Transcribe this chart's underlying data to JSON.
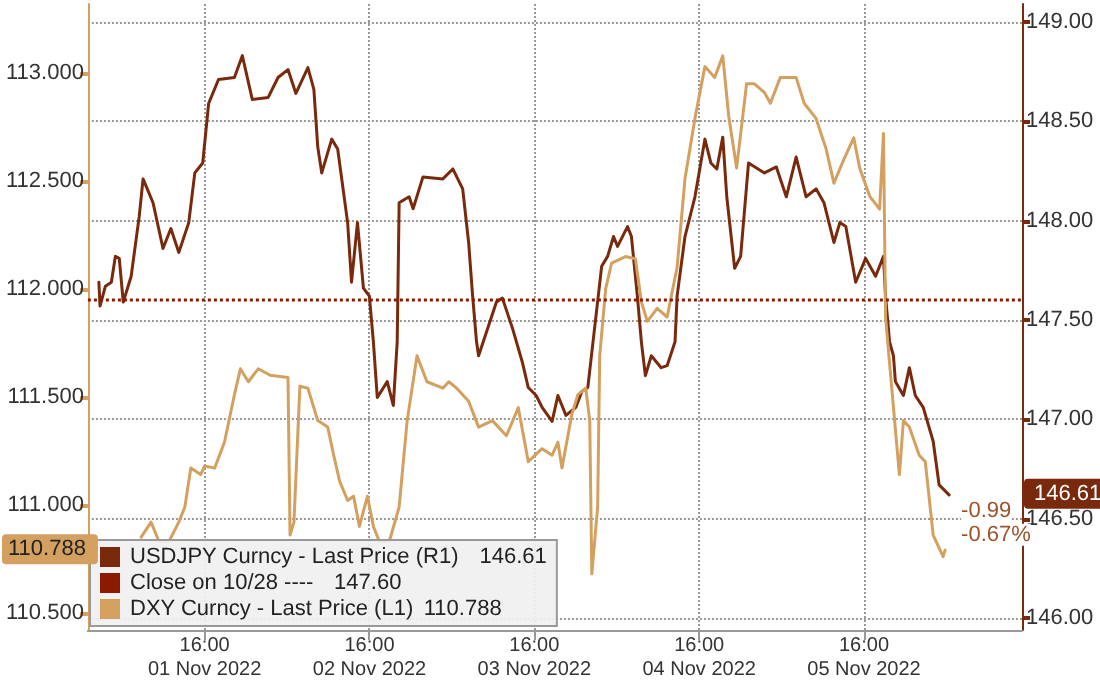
{
  "chart_data": {
    "type": "line",
    "xlim": [
      "2022-10-31T23:00",
      "2022-11-06T15:00"
    ],
    "xticks": [
      {
        "value": "2022-11-01T16:00",
        "label": "16:00\n01 Nov 2022"
      },
      {
        "value": "2022-11-02T16:00",
        "label": "16:00\n02 Nov 2022"
      },
      {
        "value": "2022-11-03T16:00",
        "label": "16:00\n03 Nov 2022"
      },
      {
        "value": "2022-11-04T16:00",
        "label": "16:00\n04 Nov 2022"
      },
      {
        "value": "2022-11-05T16:00",
        "label": "16:00\n05 Nov 2022"
      }
    ],
    "ylim": [
      110.42,
      113.32
    ],
    "yticks": [
      {
        "value": 110.5,
        "label": "110.500"
      },
      {
        "value": 111,
        "label": "111.000"
      },
      {
        "value": 111.5,
        "label": "111.500"
      },
      {
        "value": 112,
        "label": "112.000"
      },
      {
        "value": 112.5,
        "label": "112.500"
      },
      {
        "value": 113,
        "label": "113.000"
      }
    ],
    "y2lim": [
      145.94,
      149.09
    ],
    "y2ticks": [
      {
        "value": 146,
        "label": "146.00"
      },
      {
        "value": 146.5,
        "label": "146.50"
      },
      {
        "value": 147,
        "label": "147.00"
      },
      {
        "value": 147.5,
        "label": "147.50"
      },
      {
        "value": 148,
        "label": "148.00"
      },
      {
        "value": 148.5,
        "label": "148.50"
      },
      {
        "value": 149,
        "label": "149.00"
      }
    ],
    "grid": true,
    "legend": "bottom left",
    "marker": "none",
    "line_style": "solid",
    "series": [
      {
        "name": "USDJPY Curncy - Last Price (R1)",
        "color": "#7a2a0c",
        "axis": "y2",
        "x": [
          "2022-11-01T00:36",
          "2022-11-01T00:46",
          "2022-11-01T01:33",
          "2022-11-01T02:25",
          "2022-11-01T03:00",
          "2022-11-01T03:34",
          "2022-11-01T04:09",
          "2022-11-01T05:18",
          "2022-11-01T06:28",
          "2022-11-01T07:02",
          "2022-11-01T08:29",
          "2022-11-01T09:56",
          "2022-11-01T11:05",
          "2022-11-01T12:14",
          "2022-11-01T13:41",
          "2022-11-01T14:34",
          "2022-11-01T15:43",
          "2022-11-01T16:35",
          "2022-11-01T18:01",
          "2022-11-01T20:20",
          "2022-11-01T21:29",
          "2022-11-01T22:56",
          "2022-11-02T01:15",
          "2022-11-02T02:41",
          "2022-11-02T04:08",
          "2022-11-02T05:17",
          "2022-11-02T07:02",
          "2022-11-02T07:54",
          "2022-11-02T08:28",
          "2022-11-02T09:03",
          "2022-11-02T10:30",
          "2022-11-02T11:22",
          "2022-11-02T12:49",
          "2022-11-02T13:23",
          "2022-11-02T14:15",
          "2022-11-02T15:07",
          "2022-11-02T15:59",
          "2022-11-02T16:34",
          "2022-11-02T17:08",
          "2022-11-02T18:35",
          "2022-11-02T19:28",
          "2022-11-02T20:02",
          "2022-11-02T20:19",
          "2022-11-02T21:46",
          "2022-11-02T22:21",
          "2022-11-02T23:47",
          "2022-11-03T02:41",
          "2022-11-03T04:08",
          "2022-11-03T05:34",
          "2022-11-03T06:26",
          "2022-11-03T07:01",
          "2022-11-03T07:35",
          "2022-11-03T07:53",
          "2022-11-03T10:29",
          "2022-11-03T11:21",
          "2022-11-03T12:48",
          "2022-11-03T14:14",
          "2022-11-03T15:07",
          "2022-11-03T16:16",
          "2022-11-03T17:08",
          "2022-11-03T18:35",
          "2022-11-03T19:26",
          "2022-11-03T20:36",
          "2022-11-03T22:02",
          "2022-11-03T22:55",
          "2022-11-03T23:47",
          "2022-11-04T01:48",
          "2022-11-04T02:40",
          "2022-11-04T03:32",
          "2022-11-04T04:07",
          "2022-11-04T05:34",
          "2022-11-04T06:08",
          "2022-11-04T07:00",
          "2022-11-04T07:35",
          "2022-11-04T08:10",
          "2022-11-04T09:02",
          "2022-11-04T10:28",
          "2022-11-04T11:20",
          "2022-11-04T12:29",
          "2022-11-04T12:47",
          "2022-11-04T13:56",
          "2022-11-04T15:23",
          "2022-11-04T16:50",
          "2022-11-04T17:42",
          "2022-11-04T18:34",
          "2022-11-04T19:26",
          "2022-11-04T20:01",
          "2022-11-04T21:10",
          "2022-11-04T22:02",
          "2022-11-04T23:11",
          "2022-11-05T01:30",
          "2022-11-05T03:14",
          "2022-11-05T04:41",
          "2022-11-05T06:07",
          "2022-11-05T07:34",
          "2022-11-05T09:01",
          "2022-11-05T10:10",
          "2022-11-05T11:37",
          "2022-11-05T12:29",
          "2022-11-05T13:21",
          "2022-11-05T14:47",
          "2022-11-05T16:14",
          "2022-11-05T17:41",
          "2022-11-05T18:50",
          "2022-11-05T19:08",
          "2022-11-05T19:43",
          "2022-11-05T20:17",
          "2022-11-05T20:34",
          "2022-11-05T21:44",
          "2022-11-05T22:36",
          "2022-11-05T23:28",
          "2022-11-06T00:37",
          "2022-11-06T02:04",
          "2022-11-06T02:56",
          "2022-11-06T03:48",
          "2022-11-06T04:23"
        ],
        "values": [
          147.69,
          147.57,
          147.67,
          147.69,
          147.82,
          147.81,
          147.59,
          147.72,
          148.02,
          148.21,
          148.09,
          147.86,
          147.96,
          147.84,
          147.99,
          148.24,
          148.29,
          148.59,
          148.71,
          148.72,
          148.83,
          148.61,
          148.62,
          148.72,
          148.76,
          148.64,
          148.77,
          148.66,
          148.37,
          148.24,
          148.41,
          148.36,
          147.99,
          147.69,
          147.99,
          147.66,
          147.62,
          147.39,
          147.11,
          147.19,
          147.07,
          147.39,
          148.09,
          148.12,
          148.06,
          148.22,
          148.21,
          148.26,
          148.16,
          147.89,
          147.62,
          147.39,
          147.32,
          147.59,
          147.61,
          147.46,
          147.29,
          147.16,
          147.12,
          147.06,
          146.99,
          147.12,
          147.02,
          147.06,
          147.14,
          147.16,
          147.77,
          147.82,
          147.92,
          147.87,
          147.97,
          147.92,
          147.62,
          147.39,
          147.22,
          147.32,
          147.26,
          147.27,
          147.39,
          147.62,
          147.92,
          148.12,
          148.41,
          148.29,
          148.26,
          148.42,
          148.12,
          147.76,
          147.82,
          148.29,
          148.24,
          148.27,
          148.12,
          148.32,
          148.12,
          148.16,
          148.09,
          147.89,
          147.99,
          147.97,
          147.69,
          147.81,
          147.72,
          147.82,
          147.62,
          147.39,
          147.32,
          147.19,
          147.12,
          147.26,
          147.12,
          147.06,
          146.89,
          146.67,
          146.64,
          146.62
        ]
      },
      {
        "name": "DXY Curncy - Last Price (L1)",
        "color": "#d4a060",
        "x": [
          "2022-11-01T06:45",
          "2022-11-01T08:12",
          "2022-11-01T09:21",
          "2022-11-01T10:48",
          "2022-11-01T12:14",
          "2022-11-01T13:07",
          "2022-11-01T13:59",
          "2022-11-01T15:25",
          "2022-11-01T16:00",
          "2022-11-01T17:27",
          "2022-11-01T18:53",
          "2022-11-01T20:20",
          "2022-11-01T21:12",
          "2022-11-01T22:22",
          "2022-11-01T23:48",
          "2022-11-02T01:32",
          "2022-11-02T04:08",
          "2022-11-02T04:26",
          "2022-11-02T05:00",
          "2022-11-02T05:52",
          "2022-11-02T07:02",
          "2022-11-02T08:28",
          "2022-11-02T09:55",
          "2022-11-02T10:47",
          "2022-11-02T11:39",
          "2022-11-02T12:49",
          "2022-11-02T13:41",
          "2022-11-02T14:32",
          "2022-11-02T15:42",
          "2022-11-02T16:34",
          "2022-11-02T17:26",
          "2022-11-02T18:53",
          "2022-11-02T20:19",
          "2022-11-02T21:29",
          "2022-11-02T22:55",
          "2022-11-03T00:22",
          "2022-11-03T02:41",
          "2022-11-03T03:33",
          "2022-11-03T04:42",
          "2022-11-03T06:26",
          "2022-11-03T07:53",
          "2022-11-03T09:54",
          "2022-11-03T11:56",
          "2022-11-03T13:40",
          "2022-11-03T15:07",
          "2022-11-03T17:08",
          "2022-11-03T18:35",
          "2022-11-03T19:26",
          "2022-11-03T20:01",
          "2022-11-03T21:28",
          "2022-11-03T22:20",
          "2022-11-03T23:29",
          "2022-11-04T00:04",
          "2022-11-04T00:22",
          "2022-11-04T01:13",
          "2022-11-04T01:31",
          "2022-11-04T02:23",
          "2022-11-04T03:15",
          "2022-11-04T05:16",
          "2022-11-04T06:43",
          "2022-11-04T07:35",
          "2022-11-04T08:27",
          "2022-11-04T09:53",
          "2022-11-04T11:20",
          "2022-11-04T12:47",
          "2022-11-04T13:56",
          "2022-11-04T15:23",
          "2022-11-04T16:50",
          "2022-11-04T18:16",
          "2022-11-04T19:26",
          "2022-11-04T20:18",
          "2022-11-04T21:27",
          "2022-11-04T22:54",
          "2022-11-05T00:03",
          "2022-11-05T01:30",
          "2022-11-05T02:22",
          "2022-11-05T03:49",
          "2022-11-05T06:07",
          "2022-11-05T07:17",
          "2022-11-05T09:01",
          "2022-11-05T10:28",
          "2022-11-05T11:37",
          "2022-11-05T13:04",
          "2022-11-05T14:30",
          "2022-11-05T15:22",
          "2022-11-05T16:49",
          "2022-11-05T18:16",
          "2022-11-05T18:50",
          "2022-11-05T19:08",
          "2022-11-05T20:17",
          "2022-11-05T21:09",
          "2022-11-05T21:44",
          "2022-11-05T22:36",
          "2022-11-06T00:02",
          "2022-11-06T00:55",
          "2022-11-06T02:04",
          "2022-11-06T03:31",
          "2022-11-06T03:48"
        ],
        "values": [
          110.85,
          110.92,
          110.83,
          110.83,
          110.92,
          110.99,
          111.17,
          111.14,
          111.18,
          111.17,
          111.29,
          111.51,
          111.63,
          111.57,
          111.63,
          111.6,
          111.59,
          110.86,
          110.92,
          111.55,
          111.54,
          111.39,
          111.36,
          111.23,
          111.11,
          111.02,
          111.04,
          110.9,
          111.04,
          110.9,
          110.83,
          110.83,
          110.99,
          111.39,
          111.69,
          111.57,
          111.54,
          111.57,
          111.54,
          111.48,
          111.36,
          111.39,
          111.32,
          111.45,
          111.2,
          111.26,
          111.23,
          111.29,
          111.17,
          111.42,
          111.51,
          111.54,
          111.39,
          110.68,
          110.99,
          111.69,
          112.0,
          112.12,
          112.15,
          112.14,
          111.94,
          111.85,
          111.91,
          111.87,
          112.1,
          112.51,
          112.79,
          113.03,
          112.98,
          113.08,
          112.8,
          112.56,
          112.95,
          112.95,
          112.91,
          112.86,
          112.98,
          112.98,
          112.86,
          112.79,
          112.65,
          112.49,
          112.6,
          112.7,
          112.56,
          112.43,
          112.37,
          112.72,
          111.87,
          111.45,
          111.14,
          111.39,
          111.36,
          111.23,
          111.2,
          110.86,
          110.76,
          110.79
        ]
      }
    ],
    "ref_lines": [
      {
        "axis": "y2",
        "value": 147.6,
        "label": "Close on 10/28 ----",
        "color": "#8b1a00",
        "line_style": "dotted"
      }
    ],
    "annotations": [
      "146.61",
      "147.60",
      "110.788",
      "146.61",
      "110.788",
      "-0.99",
      "-0.67%"
    ]
  }
}
